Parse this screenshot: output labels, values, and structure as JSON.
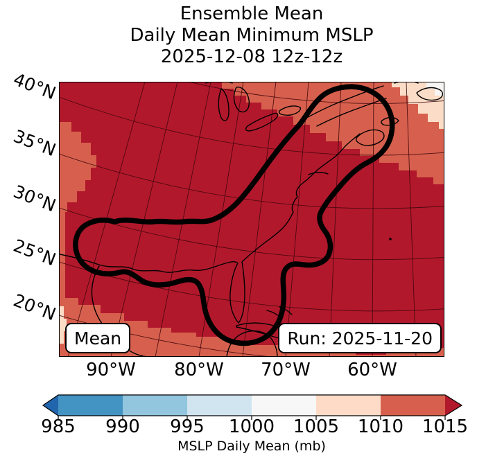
{
  "title": {
    "lines": [
      "Ensemble Mean",
      "Daily Mean Minimum MSLP",
      "2025-12-08 12z-12z"
    ]
  },
  "map": {
    "lat_labels": [
      "40°N",
      "35°N",
      "30°N",
      "25°N",
      "20°N"
    ],
    "lon_labels": [
      "90°W",
      "80°W",
      "70°W",
      "60°W"
    ],
    "mean_box_label": "Mean",
    "run_box_label": "Run: 2025-11-20"
  },
  "colorbar": {
    "label": "MSLP Daily Mean (mb)",
    "tick_labels": [
      "985",
      "990",
      "995",
      "1000",
      "1005",
      "1010",
      "1015"
    ],
    "segment_colors": [
      "#4393c3",
      "#92c5de",
      "#d1e5f0",
      "#f7f7f7",
      "#fddbc7",
      "#d6604d"
    ],
    "under_arrow_color": "#2166ac",
    "over_arrow_color": "#b2182b"
  },
  "colors": {
    "fill_over_1015": "#b2182b",
    "fill_1010_1015": "#d6604d",
    "fill_1005_1010": "#fbdcc6",
    "fill_1000_1005": "#f7f5f3",
    "graticule": "#43060e",
    "coastline": "#000000",
    "contour_line": "#000000"
  },
  "chart_data": {
    "type": "heatmap",
    "subtype": "filled-contour-geographic-map",
    "title": "Ensemble Mean",
    "subtitle": "Daily Mean Minimum MSLP",
    "valid_time": "2025-12-08 12z-12z",
    "run_time": "Run: 2025-11-20",
    "member": "Mean",
    "x_tick_labels": [
      "90°W",
      "80°W",
      "70°W",
      "60°W"
    ],
    "y_tick_labels": [
      "40°N",
      "35°N",
      "30°N",
      "25°N",
      "20°N"
    ],
    "grid": true,
    "colorbar": {
      "label": "MSLP Daily Mean (mb)",
      "orientation": "horizontal",
      "tick_values": [
        985,
        990,
        995,
        1000,
        1005,
        1010,
        1015
      ],
      "bin_edges": [
        985,
        990,
        995,
        1000,
        1005,
        1010,
        1015
      ],
      "bin_colors": [
        "#4393c3",
        "#92c5de",
        "#d1e5f0",
        "#f7f7f7",
        "#fddbc7",
        "#d6604d"
      ],
      "extend": "both",
      "under_color": "#2166ac",
      "over_color": "#b2182b"
    },
    "map_regions": [
      {
        "value_range": "> 1015 mb",
        "color": "#b2182b",
        "coverage": "most of the interior: central/eastern US, Gulf of Mexico, western Atlantic"
      },
      {
        "value_range": "1010-1015 mb",
        "color": "#d6604d",
        "coverage": "stepped band across the northeast and right edge, Rockies patch on left edge, Mexico and bottom edge"
      },
      {
        "value_range": "1005-1010 mb",
        "color": "#fbdcc6",
        "coverage": "top-right corner near Newfoundland, small strips on the west edge"
      },
      {
        "value_range": "1000-1005 mb",
        "color": "#f7f5f3",
        "coverage": "extreme top-right corner"
      }
    ],
    "contour_annotation": "single thick black closed contour enclosing the western Gulf of Mexico, Florida/Cuba lobe and the U.S. East Coast up to a round lobe over Nova Scotia"
  }
}
